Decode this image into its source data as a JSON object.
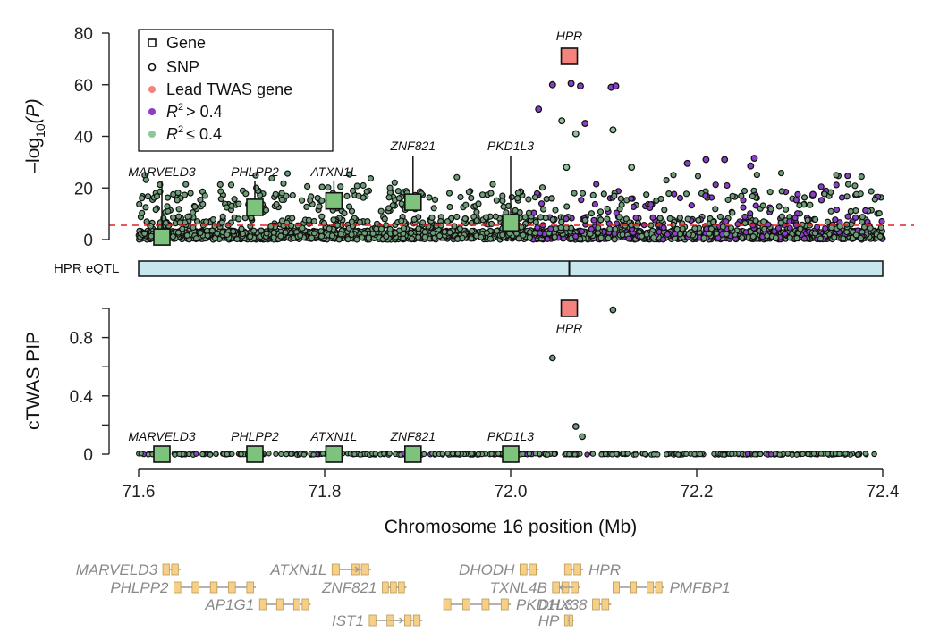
{
  "colors": {
    "gene_fill": "#7dc27d",
    "lead_fill": "#f4837d",
    "high_ld": "#8b3fc8",
    "low_ld": "#8fc79a",
    "snp_default": "#6e9e78",
    "threshold": "#e02020",
    "eqtl_bar": "#c7e6ee",
    "track_gene": "#f7cf86",
    "track_text": "#8a8a8a"
  },
  "chart_data": [
    {
      "type": "scatter",
      "panel": "top",
      "ylabel_prefix": "–log",
      "ylabel_sub": "10",
      "ylabel_suffix": "(P)",
      "ylim": [
        0,
        80
      ],
      "xlim": [
        71.6,
        72.4
      ],
      "yticks": [
        "0",
        "20",
        "40",
        "60",
        "80"
      ],
      "threshold": 5.3,
      "legend": {
        "placement": "top-left",
        "items": [
          {
            "label": "Gene",
            "kind": "square-open"
          },
          {
            "label": "SNP",
            "kind": "circle-open"
          },
          {
            "label": "Lead TWAS gene",
            "kind": "dot",
            "color": "#f4837d"
          },
          {
            "label": "> 0.4",
            "prefix": "R",
            "sup": "2",
            "kind": "dot",
            "color": "#8b3fc8"
          },
          {
            "label": "≤ 0.4",
            "prefix": "R",
            "sup": "2",
            "kind": "dot",
            "color": "#8fc79a"
          }
        ]
      },
      "genes": [
        {
          "name": "MARVELD3",
          "x": 71.625,
          "y": 1,
          "lead": false
        },
        {
          "name": "PHLPP2",
          "x": 71.725,
          "y": 12.5,
          "lead": false
        },
        {
          "name": "ATXN1L",
          "x": 71.81,
          "y": 15,
          "lead": false
        },
        {
          "name": "ZNF821",
          "x": 71.895,
          "y": 14.5,
          "lead": false
        },
        {
          "name": "PKD1L3",
          "x": 72.0,
          "y": 6.5,
          "lead": false
        },
        {
          "name": "HPR",
          "x": 72.063,
          "y": 71,
          "lead": true
        }
      ],
      "highlight_snps": [
        {
          "x": 72.045,
          "y": 60,
          "ld": "high"
        },
        {
          "x": 72.065,
          "y": 60.5,
          "ld": "high"
        },
        {
          "x": 72.075,
          "y": 59.5,
          "ld": "high"
        },
        {
          "x": 72.108,
          "y": 59,
          "ld": "high"
        },
        {
          "x": 72.113,
          "y": 59.5,
          "ld": "high"
        },
        {
          "x": 72.03,
          "y": 50.5,
          "ld": "high"
        },
        {
          "x": 72.08,
          "y": 45,
          "ld": "high"
        },
        {
          "x": 72.11,
          "y": 42.5,
          "ld": "low"
        },
        {
          "x": 72.055,
          "y": 46,
          "ld": "low"
        },
        {
          "x": 72.07,
          "y": 41,
          "ld": "low"
        },
        {
          "x": 72.21,
          "y": 31,
          "ld": "high"
        },
        {
          "x": 72.23,
          "y": 31,
          "ld": "high"
        },
        {
          "x": 72.262,
          "y": 31.5,
          "ld": "high"
        },
        {
          "x": 72.258,
          "y": 28.5,
          "ld": "high"
        },
        {
          "x": 72.19,
          "y": 29.5,
          "ld": "high"
        },
        {
          "x": 72.13,
          "y": 28,
          "ld": "low"
        },
        {
          "x": 72.06,
          "y": 28,
          "ld": "low"
        },
        {
          "x": 72.325,
          "y": 17.5,
          "ld": "high"
        }
      ]
    },
    {
      "type": "bar",
      "panel": "eqtl",
      "label": "HPR eQTL",
      "range": [
        71.6,
        72.4
      ],
      "marker": 72.063
    },
    {
      "type": "scatter",
      "panel": "bottom",
      "ylabel": "cTWAS PIP",
      "ylim": [
        0,
        1
      ],
      "yticks": [
        "0",
        "0.4",
        "0.8"
      ],
      "xlabel": "Chromosome 16 position (Mb)",
      "xticks": [
        "71.6",
        "71.8",
        "72.0",
        "72.2",
        "72.4"
      ],
      "genes": [
        {
          "name": "MARVELD3",
          "x": 71.625,
          "pip": 0,
          "lead": false
        },
        {
          "name": "PHLPP2",
          "x": 71.725,
          "pip": 0,
          "lead": false
        },
        {
          "name": "ATXN1L",
          "x": 71.81,
          "pip": 0,
          "lead": false
        },
        {
          "name": "ZNF821",
          "x": 71.895,
          "pip": 0,
          "lead": false
        },
        {
          "name": "PKD1L3",
          "x": 72.0,
          "pip": 0,
          "lead": false
        },
        {
          "name": "HPR",
          "x": 72.063,
          "pip": 1.0,
          "lead": true
        }
      ],
      "snps": [
        {
          "x": 72.045,
          "pip": 0.66
        },
        {
          "x": 72.11,
          "pip": 0.99
        },
        {
          "x": 72.07,
          "pip": 0.19
        },
        {
          "x": 72.077,
          "pip": 0.12
        }
      ]
    }
  ],
  "gene_track": {
    "genes": [
      {
        "name": "MARVELD3",
        "start": 71.626,
        "end": 71.645,
        "row": 0,
        "label_side": "left",
        "strand": ""
      },
      {
        "name": "ATXN1L",
        "start": 71.808,
        "end": 71.85,
        "row": 0,
        "label_side": "left",
        "strand": "+"
      },
      {
        "name": "DHODH",
        "start": 72.01,
        "end": 72.03,
        "row": 0,
        "label_side": "left",
        "strand": ""
      },
      {
        "name": "HPR",
        "start": 72.058,
        "end": 72.078,
        "row": 0,
        "label_side": "right",
        "strand": ""
      },
      {
        "name": "PHLPP2",
        "start": 71.638,
        "end": 71.726,
        "row": 1,
        "label_side": "left",
        "strand": ""
      },
      {
        "name": "ZNF821",
        "start": 71.862,
        "end": 71.888,
        "row": 1,
        "label_side": "left",
        "strand": ""
      },
      {
        "name": "TXNL4B",
        "start": 72.045,
        "end": 72.075,
        "row": 1,
        "label_side": "left",
        "strand": "-"
      },
      {
        "name": "PMFBP1",
        "start": 72.11,
        "end": 72.165,
        "row": 1,
        "label_side": "right",
        "strand": ""
      },
      {
        "name": "AP1G1",
        "start": 71.73,
        "end": 71.785,
        "row": 2,
        "label_side": "left",
        "strand": ""
      },
      {
        "name": "PKD1L3",
        "start": 71.928,
        "end": 72.0,
        "row": 2,
        "label_side": "right",
        "strand": ""
      },
      {
        "name": "DHX38",
        "start": 72.088,
        "end": 72.108,
        "row": 2,
        "label_side": "left",
        "strand": ""
      },
      {
        "name": "IST1",
        "start": 71.848,
        "end": 71.905,
        "row": 3,
        "label_side": "left",
        "strand": "+"
      },
      {
        "name": "HP",
        "start": 72.058,
        "end": 72.068,
        "row": 3,
        "label_side": "left",
        "strand": ""
      }
    ]
  }
}
